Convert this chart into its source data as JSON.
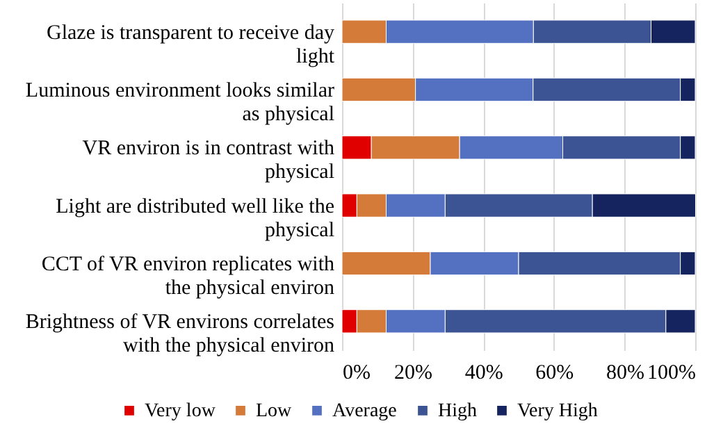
{
  "chart_data": {
    "type": "bar",
    "orientation": "horizontal",
    "stacked": true,
    "categories": [
      "Glaze is transparent to receive day light",
      "Luminous environment looks similar as physical",
      "VR environ is in contrast with physical",
      "Light are distributed well like the physical",
      "CCT of VR environ replicates with the physical environ",
      "Brightness of VR environs correlates with the physical environ"
    ],
    "series": [
      {
        "name": "Very low",
        "color": "#e00000",
        "values": [
          0,
          0,
          8.3,
          4.2,
          0,
          4.2
        ]
      },
      {
        "name": "Low",
        "color": "#d57b3a",
        "values": [
          12.5,
          20.8,
          25,
          8.3,
          25,
          8.3
        ]
      },
      {
        "name": "Average",
        "color": "#5470c0",
        "values": [
          41.7,
          33.3,
          29.2,
          16.7,
          25,
          16.7
        ]
      },
      {
        "name": "High",
        "color": "#3c5494",
        "values": [
          33.3,
          41.7,
          33.3,
          41.7,
          45.8,
          62.5
        ]
      },
      {
        "name": "Very High",
        "color": "#15245e",
        "values": [
          12.5,
          4.2,
          4.2,
          29.2,
          4.2,
          8.3
        ]
      }
    ],
    "xlim": [
      0,
      100
    ],
    "xticks": [
      {
        "value": 0,
        "label": "0%"
      },
      {
        "value": 20,
        "label": "20%"
      },
      {
        "value": 40,
        "label": "40%"
      },
      {
        "value": 60,
        "label": "60%"
      },
      {
        "value": 80,
        "label": "80%"
      },
      {
        "value": 100,
        "label": "100%"
      }
    ],
    "grid": "x",
    "legend": "bottom"
  }
}
